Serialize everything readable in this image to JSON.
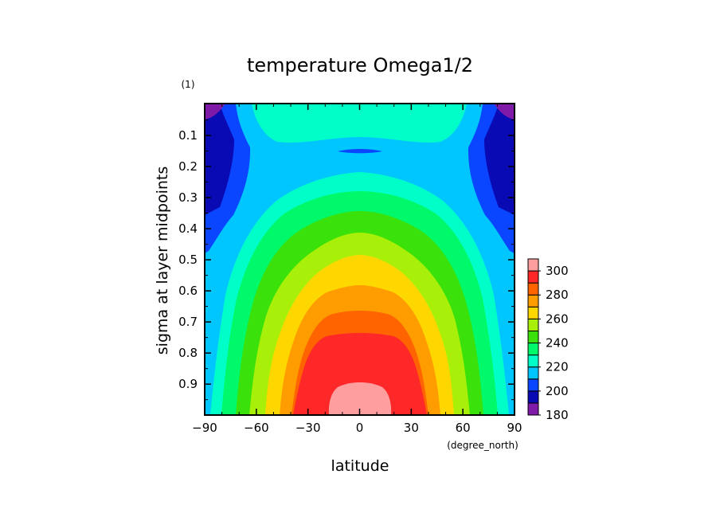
{
  "chart_data": {
    "type": "heatmap",
    "subtype": "filled-contour",
    "title": "temperature Omega1/2",
    "xlabel": "latitude",
    "x_units": "(degree_north)",
    "ylabel": "sigma at layer midpoints",
    "y_units": "(1)",
    "xlim": [
      -90,
      90
    ],
    "ylim": [
      1.0,
      0.0
    ],
    "y_inverted": true,
    "x_ticks": [
      "−90",
      "−60",
      "−30",
      "0",
      "30",
      "60",
      "90"
    ],
    "y_ticks": [
      "0.1",
      "0.2",
      "0.3",
      "0.4",
      "0.5",
      "0.6",
      "0.7",
      "0.8",
      "0.9"
    ],
    "colorbar": {
      "levels": [
        180,
        190,
        200,
        210,
        220,
        230,
        240,
        250,
        260,
        270,
        280,
        290,
        300
      ],
      "labels": [
        "180",
        "200",
        "220",
        "240",
        "260",
        "280",
        "300"
      ],
      "colors": [
        "#7f1aa8",
        "#0a0ab4",
        "#0a46ff",
        "#00c6ff",
        "#00ffc8",
        "#00f96a",
        "#3ae10a",
        "#a8f00a",
        "#ffd700",
        "#ff9c00",
        "#ff6400",
        "#ff2828",
        "#ff9e9e"
      ]
    },
    "grid": false,
    "legend_placement": "right (colorbar)"
  }
}
